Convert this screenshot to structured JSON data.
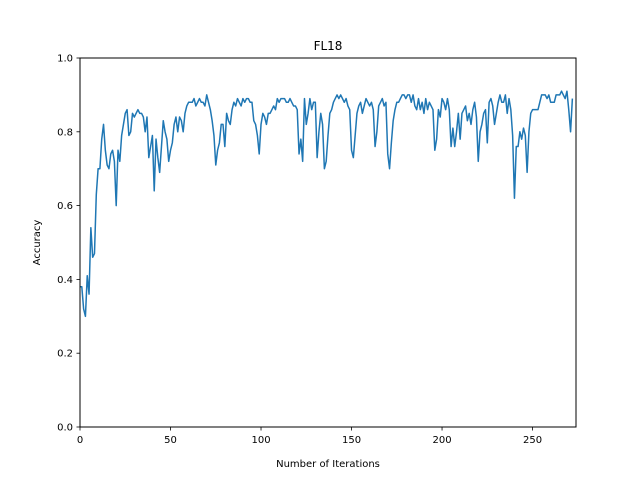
{
  "chart_data": {
    "type": "line",
    "title": "FL18",
    "xlabel": "Number of Iterations",
    "ylabel": "Accuracy",
    "xlim": [
      0,
      274
    ],
    "ylim": [
      0.0,
      1.0
    ],
    "xticks": [
      0,
      50,
      100,
      150,
      200,
      250
    ],
    "yticks": [
      0.0,
      0.2,
      0.4,
      0.6,
      0.8,
      1.0
    ],
    "ytick_labels": [
      "0.0",
      "0.2",
      "0.4",
      "0.6",
      "0.8",
      "1.0"
    ],
    "grid": false,
    "colors": {
      "line": "#1f77b4"
    },
    "series": [
      {
        "values": [
          0.38,
          0.38,
          0.32,
          0.3,
          0.41,
          0.36,
          0.54,
          0.46,
          0.47,
          0.63,
          0.7,
          0.7,
          0.78,
          0.82,
          0.75,
          0.71,
          0.7,
          0.74,
          0.75,
          0.72,
          0.6,
          0.75,
          0.72,
          0.79,
          0.82,
          0.85,
          0.86,
          0.79,
          0.8,
          0.85,
          0.84,
          0.85,
          0.86,
          0.85,
          0.85,
          0.84,
          0.8,
          0.84,
          0.73,
          0.76,
          0.79,
          0.64,
          0.78,
          0.73,
          0.69,
          0.76,
          0.83,
          0.8,
          0.78,
          0.72,
          0.75,
          0.77,
          0.82,
          0.84,
          0.8,
          0.84,
          0.83,
          0.8,
          0.85,
          0.87,
          0.88,
          0.88,
          0.88,
          0.89,
          0.87,
          0.88,
          0.89,
          0.88,
          0.88,
          0.87,
          0.9,
          0.88,
          0.86,
          0.83,
          0.79,
          0.71,
          0.75,
          0.77,
          0.82,
          0.82,
          0.76,
          0.85,
          0.83,
          0.82,
          0.86,
          0.88,
          0.87,
          0.89,
          0.88,
          0.87,
          0.89,
          0.88,
          0.89,
          0.89,
          0.88,
          0.88,
          0.83,
          0.82,
          0.79,
          0.74,
          0.82,
          0.85,
          0.84,
          0.82,
          0.85,
          0.85,
          0.86,
          0.87,
          0.86,
          0.89,
          0.88,
          0.89,
          0.89,
          0.89,
          0.88,
          0.88,
          0.89,
          0.88,
          0.87,
          0.87,
          0.86,
          0.74,
          0.78,
          0.72,
          0.89,
          0.82,
          0.85,
          0.89,
          0.86,
          0.88,
          0.88,
          0.73,
          0.8,
          0.85,
          0.82,
          0.7,
          0.72,
          0.79,
          0.85,
          0.86,
          0.88,
          0.89,
          0.9,
          0.89,
          0.9,
          0.89,
          0.88,
          0.89,
          0.87,
          0.86,
          0.75,
          0.73,
          0.79,
          0.85,
          0.87,
          0.88,
          0.85,
          0.87,
          0.89,
          0.88,
          0.87,
          0.88,
          0.86,
          0.76,
          0.8,
          0.87,
          0.88,
          0.89,
          0.87,
          0.88,
          0.74,
          0.7,
          0.77,
          0.83,
          0.86,
          0.88,
          0.88,
          0.89,
          0.9,
          0.9,
          0.89,
          0.9,
          0.9,
          0.88,
          0.9,
          0.87,
          0.86,
          0.89,
          0.86,
          0.88,
          0.85,
          0.89,
          0.86,
          0.88,
          0.87,
          0.86,
          0.75,
          0.78,
          0.86,
          0.84,
          0.89,
          0.88,
          0.86,
          0.89,
          0.86,
          0.76,
          0.81,
          0.76,
          0.8,
          0.85,
          0.78,
          0.85,
          0.86,
          0.87,
          0.83,
          0.85,
          0.82,
          0.86,
          0.88,
          0.84,
          0.72,
          0.8,
          0.82,
          0.85,
          0.86,
          0.77,
          0.88,
          0.89,
          0.87,
          0.82,
          0.85,
          0.88,
          0.9,
          0.88,
          0.88,
          0.9,
          0.85,
          0.89,
          0.86,
          0.79,
          0.62,
          0.76,
          0.76,
          0.8,
          0.78,
          0.81,
          0.79,
          0.69,
          0.8,
          0.85,
          0.86,
          0.86,
          0.86,
          0.86,
          0.88,
          0.9,
          0.9,
          0.9,
          0.89,
          0.9,
          0.88,
          0.88,
          0.88,
          0.9,
          0.9,
          0.9,
          0.91,
          0.9,
          0.89,
          0.91,
          0.86,
          0.8,
          0.89
        ]
      }
    ]
  }
}
